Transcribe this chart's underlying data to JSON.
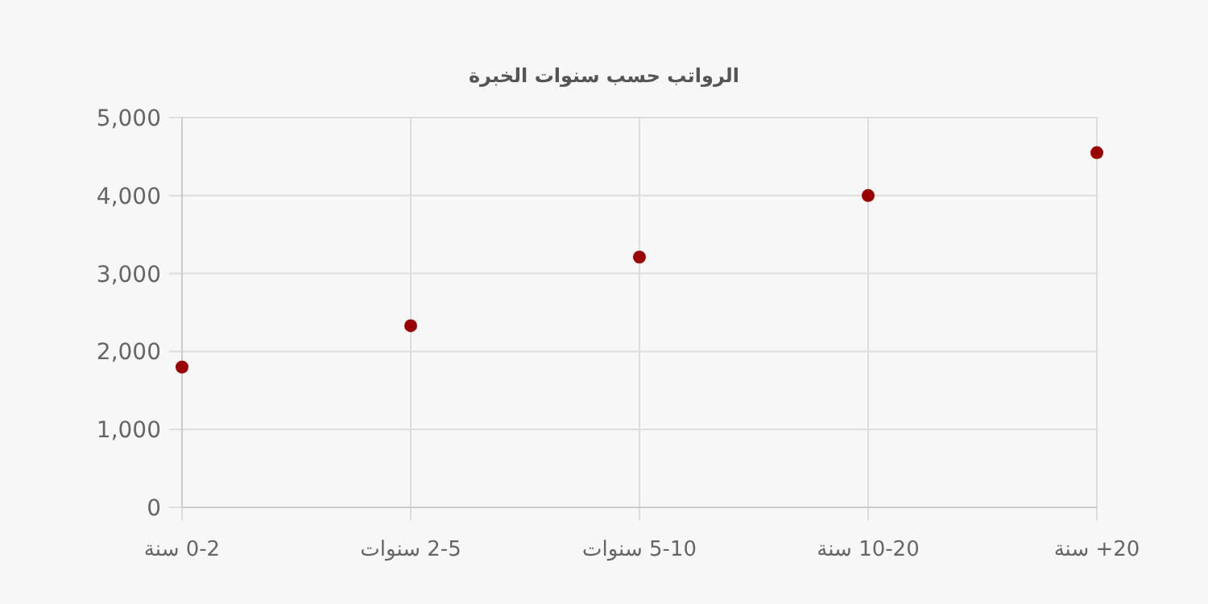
{
  "chart_data": {
    "type": "scatter",
    "title": "الرواتب حسب سنوات الخبرة",
    "categories": [
      "0-2 سنة",
      "2-5 سنوات",
      "5-10 سنوات",
      "10-20 سنة",
      "20+ سنة"
    ],
    "series": [
      {
        "color": "#990000",
        "values": [
          1800,
          2330,
          3210,
          4000,
          4550
        ]
      }
    ],
    "ylim": [
      0,
      5000
    ],
    "yticks": [
      {
        "value": 0,
        "label": "0"
      },
      {
        "value": 1000,
        "label": "1,000"
      },
      {
        "value": 2000,
        "label": "2,000"
      },
      {
        "value": 3000,
        "label": "3,000"
      },
      {
        "value": 4000,
        "label": "4,000"
      },
      {
        "value": 5000,
        "label": "5,000"
      }
    ],
    "grid": true,
    "marker": "circle"
  }
}
